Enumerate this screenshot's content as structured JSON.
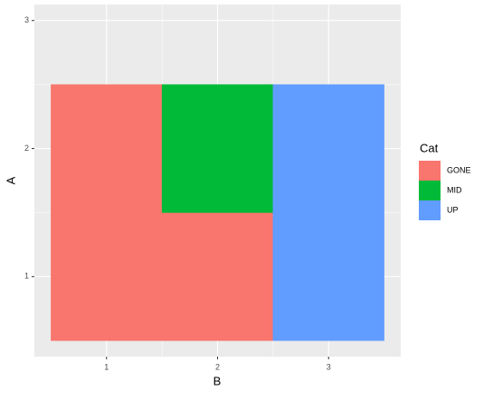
{
  "chart_data": {
    "type": "tile",
    "x_label": "B",
    "y_label": "A",
    "tile_width": 1,
    "tile_height": 1,
    "series": [
      {
        "name": "GONE",
        "color": "#F8766D",
        "x": [
          1,
          1,
          2
        ],
        "y": [
          1,
          2,
          1
        ]
      },
      {
        "name": "MID",
        "color": "#00BA38",
        "x": [
          2
        ],
        "y": [
          2
        ]
      },
      {
        "name": "UP",
        "color": "#619CFF",
        "x": [
          3,
          3
        ],
        "y": [
          1,
          2
        ]
      }
    ],
    "legend_title": "Cat",
    "legend": "right",
    "xlim": [
      0.35,
      3.65
    ],
    "xticks": [
      1,
      2,
      3
    ],
    "ylim": [
      0.375,
      3.125
    ],
    "yticks": [
      1,
      2,
      3
    ],
    "grid": true
  }
}
